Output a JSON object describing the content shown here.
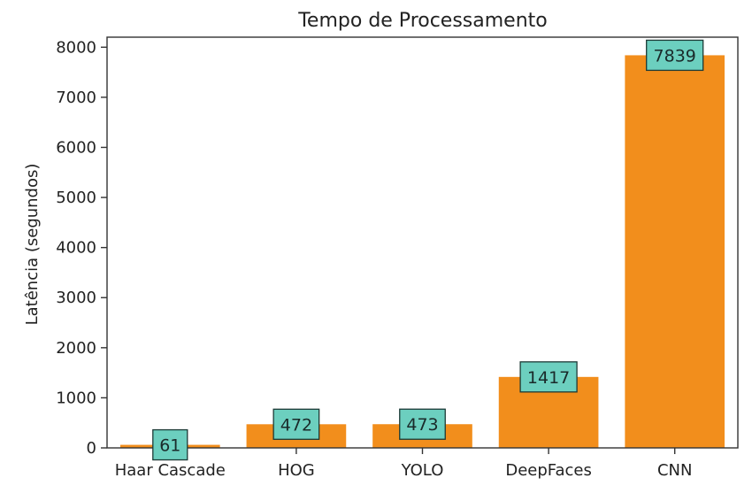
{
  "chart_data": {
    "type": "bar",
    "title": "Tempo de Processamento",
    "xlabel": "",
    "ylabel": "Latência (segundos)",
    "categories": [
      "Haar Cascade",
      "HOG",
      "YOLO",
      "DeepFaces",
      "CNN"
    ],
    "values": [
      61,
      472,
      473,
      1417,
      7839
    ],
    "data_labels": [
      "61",
      "472",
      "473",
      "1417",
      "7839"
    ],
    "ylim": [
      0,
      8200
    ],
    "yticks": [
      0,
      1000,
      2000,
      3000,
      4000,
      5000,
      6000,
      7000,
      8000
    ],
    "ytick_labels": [
      "0",
      "1000",
      "2000",
      "3000",
      "4000",
      "5000",
      "6000",
      "7000",
      "8000"
    ],
    "grid": false,
    "colors": {
      "bar": "#f28e1c",
      "label_box_fill": "#6ccfbf",
      "label_box_stroke": "#1c3a36",
      "axis": "#333333"
    }
  }
}
